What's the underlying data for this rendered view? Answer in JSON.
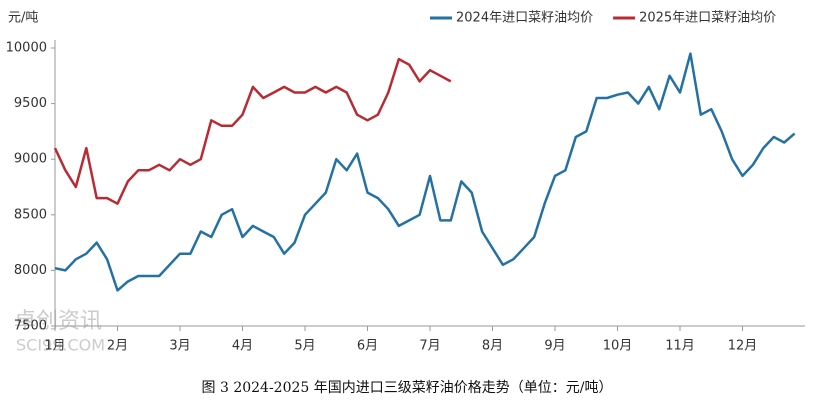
{
  "chart_data": {
    "type": "line",
    "ylabel": "元/吨",
    "caption": "图 3   2024-2025 年国内进口三级菜籽油价格走势（单位：元/吨）",
    "watermark": "卓创资讯",
    "watermark_sub": "SCI99.COM",
    "categories": [
      "1月",
      null,
      null,
      null,
      null,
      null,
      "2月",
      null,
      null,
      null,
      null,
      null,
      "3月",
      null,
      null,
      null,
      null,
      null,
      "4月",
      null,
      null,
      null,
      null,
      null,
      "5月",
      null,
      null,
      null,
      null,
      null,
      "6月",
      null,
      null,
      null,
      null,
      null,
      "7月",
      null,
      null,
      null,
      null,
      null,
      "8月",
      null,
      null,
      null,
      null,
      null,
      "9月",
      null,
      null,
      null,
      null,
      null,
      "10月",
      null,
      null,
      null,
      null,
      null,
      "11月",
      null,
      null,
      null,
      null,
      null,
      "12月",
      null,
      null,
      null,
      null,
      null
    ],
    "ylim": [
      7500,
      10000
    ],
    "yticks": [
      7500,
      8000,
      8500,
      9000,
      9500,
      10000
    ],
    "legend": "top-right",
    "series": [
      {
        "name": "2024年进口菜籽油均价",
        "color": "#2471a3",
        "values": [
          8020,
          8000,
          8100,
          8150,
          8250,
          8100,
          7820,
          7900,
          7950,
          7950,
          7950,
          8050,
          8150,
          8150,
          8350,
          8300,
          8500,
          8550,
          8300,
          8400,
          8350,
          8300,
          8150,
          8250,
          8500,
          8600,
          8700,
          9000,
          8900,
          9050,
          8700,
          8650,
          8550,
          8400,
          8450,
          8500,
          8850,
          8450,
          8450,
          8800,
          8700,
          8350,
          8200,
          8050,
          8100,
          8200,
          8300,
          8600,
          8850,
          8900,
          9200,
          9250,
          9550,
          9550,
          9580,
          9600,
          9500,
          9650,
          9450,
          9750,
          9600,
          9950,
          9400,
          9450,
          9250,
          9000,
          8850,
          8950,
          9100,
          9200,
          9150,
          9230
        ]
      },
      {
        "name": "2025年进口菜籽油均价",
        "color": "#b92b32",
        "values": [
          9100,
          8900,
          8750,
          9100,
          8650,
          8650,
          8600,
          8800,
          8900,
          8900,
          8950,
          8900,
          9000,
          8950,
          9000,
          9350,
          9300,
          9300,
          9400,
          9650,
          9550,
          9600,
          9650,
          9600,
          9600,
          9650,
          9600,
          9650,
          9600,
          9400,
          9350,
          9400,
          9600,
          9900,
          9850,
          9700,
          9800,
          9750,
          9700,
          null,
          null,
          null,
          null,
          null,
          null,
          null,
          null,
          null,
          null,
          null,
          null,
          null,
          null,
          null,
          null,
          null,
          null,
          null,
          null,
          null,
          null,
          null,
          null,
          null,
          null,
          null,
          null,
          null,
          null,
          null,
          null,
          null
        ]
      }
    ]
  }
}
